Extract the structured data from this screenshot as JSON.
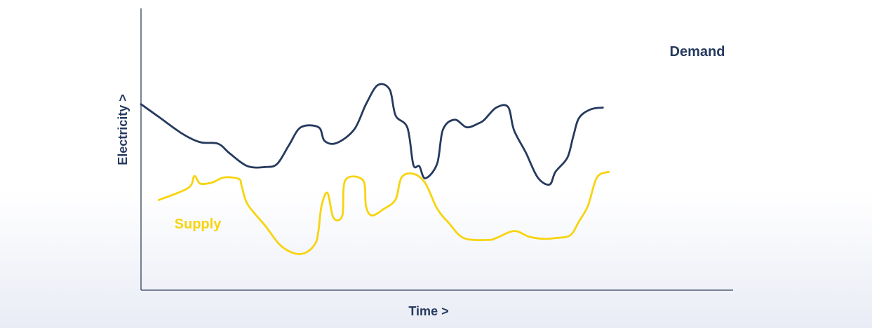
{
  "chart_data": {
    "type": "line",
    "xlabel": "Time >",
    "ylabel": "Electricity >",
    "grid": false,
    "legend": "inline labels at series",
    "colors": {
      "axis": "#2f3f5c",
      "label": "#263a5e"
    },
    "series": [
      {
        "name": "Demand",
        "color": "#263a5e",
        "points": [
          [
            0,
            0.66
          ],
          [
            0.03,
            0.615
          ],
          [
            0.07,
            0.555
          ],
          [
            0.1,
            0.525
          ],
          [
            0.13,
            0.52
          ],
          [
            0.15,
            0.485
          ],
          [
            0.18,
            0.44
          ],
          [
            0.21,
            0.437
          ],
          [
            0.23,
            0.448
          ],
          [
            0.25,
            0.515
          ],
          [
            0.27,
            0.578
          ],
          [
            0.3,
            0.578
          ],
          [
            0.31,
            0.53
          ],
          [
            0.33,
            0.522
          ],
          [
            0.36,
            0.57
          ],
          [
            0.38,
            0.66
          ],
          [
            0.4,
            0.728
          ],
          [
            0.42,
            0.712
          ],
          [
            0.43,
            0.62
          ],
          [
            0.45,
            0.576
          ],
          [
            0.46,
            0.445
          ],
          [
            0.47,
            0.44
          ],
          [
            0.48,
            0.397
          ],
          [
            0.5,
            0.448
          ],
          [
            0.51,
            0.57
          ],
          [
            0.53,
            0.605
          ],
          [
            0.55,
            0.578
          ],
          [
            0.57,
            0.592
          ],
          [
            0.58,
            0.605
          ],
          [
            0.6,
            0.648
          ],
          [
            0.62,
            0.65
          ],
          [
            0.63,
            0.568
          ],
          [
            0.65,
            0.488
          ],
          [
            0.67,
            0.4
          ],
          [
            0.69,
            0.375
          ],
          [
            0.7,
            0.42
          ],
          [
            0.72,
            0.47
          ],
          [
            0.73,
            0.545
          ],
          [
            0.74,
            0.612
          ],
          [
            0.76,
            0.642
          ],
          [
            0.78,
            0.648
          ]
        ]
      },
      {
        "name": "Supply",
        "color": "#f7d40f",
        "points": [
          [
            0.03,
            0.32
          ],
          [
            0.08,
            0.363
          ],
          [
            0.09,
            0.405
          ],
          [
            0.1,
            0.378
          ],
          [
            0.12,
            0.382
          ],
          [
            0.14,
            0.4
          ],
          [
            0.165,
            0.395
          ],
          [
            0.17,
            0.37
          ],
          [
            0.18,
            0.305
          ],
          [
            0.21,
            0.228
          ],
          [
            0.235,
            0.16
          ],
          [
            0.26,
            0.13
          ],
          [
            0.28,
            0.135
          ],
          [
            0.295,
            0.168
          ],
          [
            0.3,
            0.215
          ],
          [
            0.305,
            0.3
          ],
          [
            0.315,
            0.345
          ],
          [
            0.325,
            0.257
          ],
          [
            0.34,
            0.265
          ],
          [
            0.345,
            0.39
          ],
          [
            0.375,
            0.39
          ],
          [
            0.38,
            0.298
          ],
          [
            0.39,
            0.265
          ],
          [
            0.41,
            0.288
          ],
          [
            0.43,
            0.322
          ],
          [
            0.44,
            0.4
          ],
          [
            0.46,
            0.413
          ],
          [
            0.48,
            0.38
          ],
          [
            0.5,
            0.29
          ],
          [
            0.52,
            0.238
          ],
          [
            0.545,
            0.185
          ],
          [
            0.585,
            0.178
          ],
          [
            0.6,
            0.185
          ],
          [
            0.63,
            0.21
          ],
          [
            0.655,
            0.19
          ],
          [
            0.68,
            0.182
          ],
          [
            0.7,
            0.185
          ],
          [
            0.725,
            0.195
          ],
          [
            0.74,
            0.245
          ],
          [
            0.755,
            0.3
          ],
          [
            0.77,
            0.4
          ],
          [
            0.79,
            0.42
          ]
        ]
      }
    ]
  }
}
